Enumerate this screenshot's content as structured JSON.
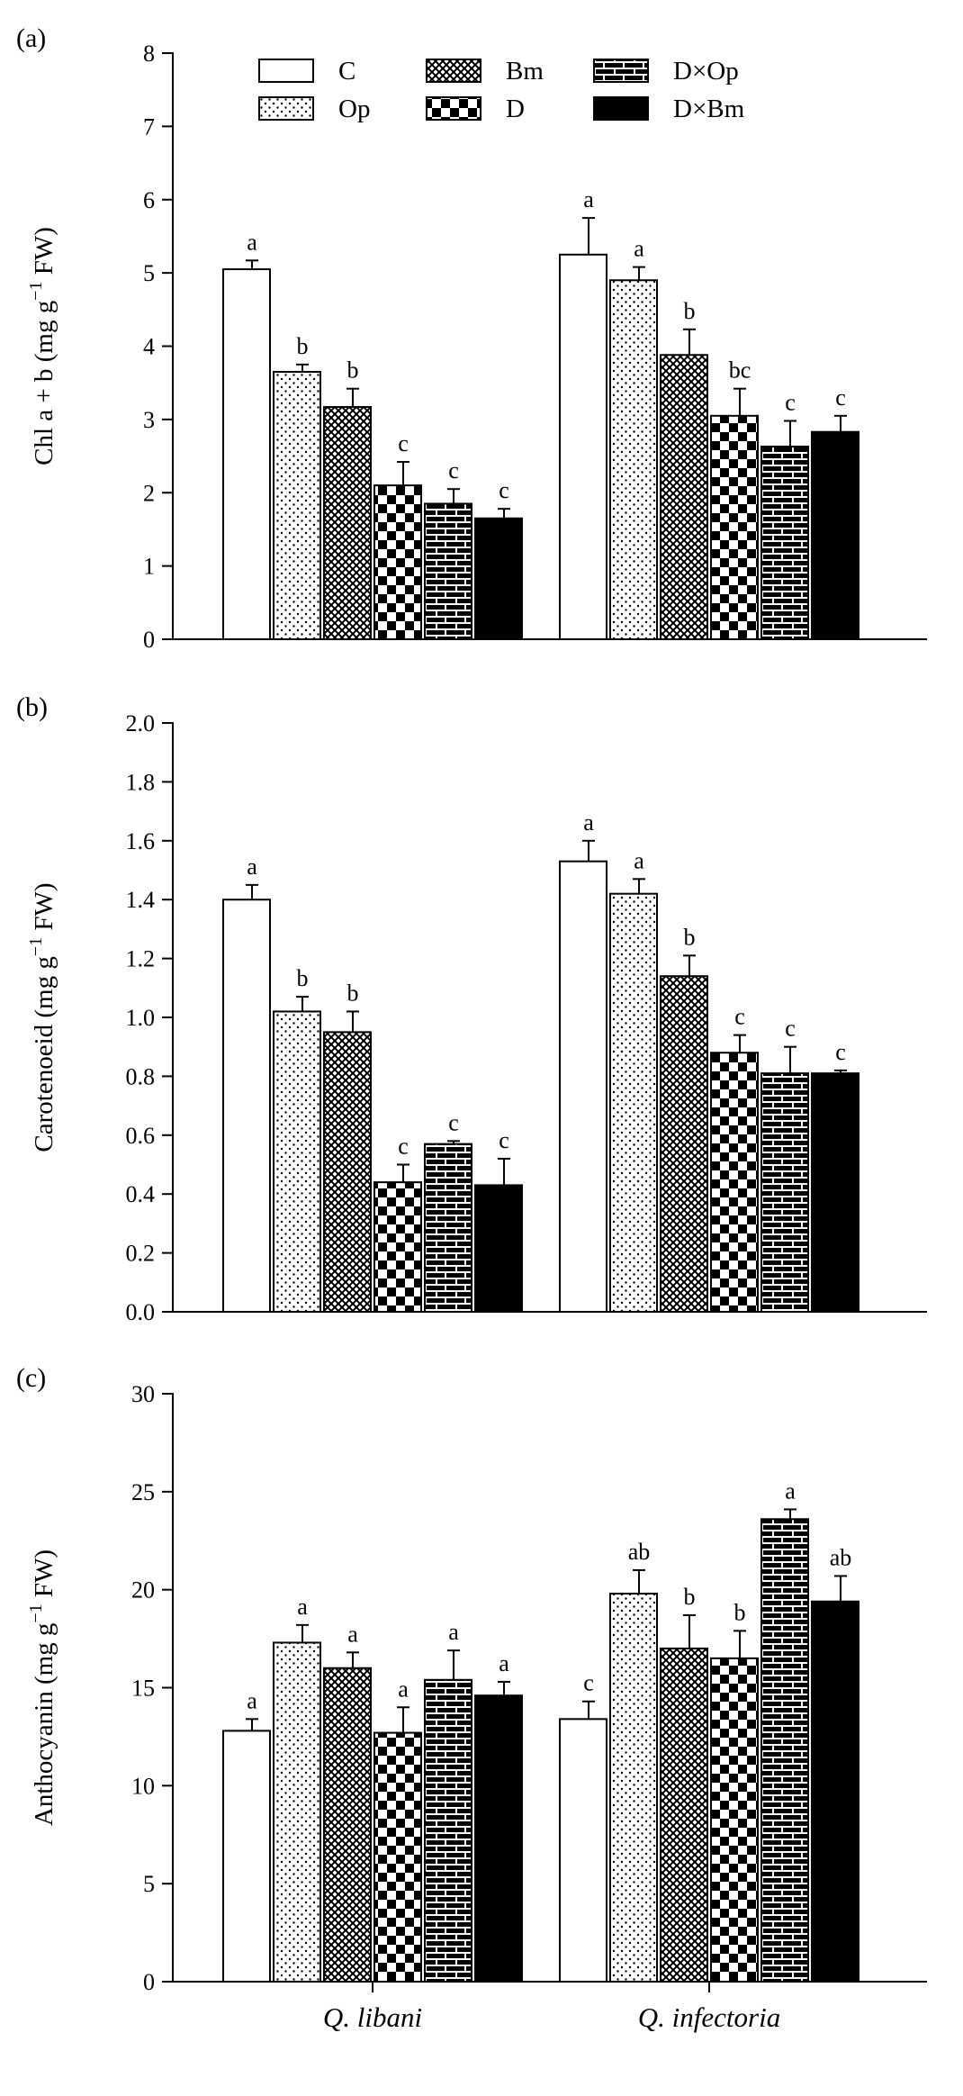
{
  "legend": [
    {
      "key": "C",
      "label": "C",
      "pattern": "white"
    },
    {
      "key": "Op",
      "label": "Op",
      "pattern": "dots"
    },
    {
      "key": "Bm",
      "label": "Bm",
      "pattern": "crosshatch"
    },
    {
      "key": "D",
      "label": "D",
      "pattern": "checker"
    },
    {
      "key": "DxOp",
      "label": "D×Op",
      "pattern": "brick"
    },
    {
      "key": "DxBm",
      "label": "D×Bm",
      "pattern": "solid"
    }
  ],
  "categories": [
    "Q. libani",
    "Q. infectoria"
  ],
  "chart_data": [
    {
      "type": "bar",
      "panel": "(a)",
      "title": "",
      "xlabel": "",
      "ylabel_main": "Chl a + b (mg g",
      "ylabel_sup": "−1",
      "ylabel_tail": " FW)",
      "ylim": [
        0,
        8
      ],
      "yticks": [
        0,
        1,
        2,
        3,
        4,
        5,
        6,
        7,
        8
      ],
      "categories": [
        "Q. libani",
        "Q. infectoria"
      ],
      "series": [
        {
          "name": "C",
          "values": [
            5.05,
            5.25
          ],
          "errors": [
            0.12,
            0.5
          ],
          "letters": [
            "a",
            "a"
          ]
        },
        {
          "name": "Op",
          "values": [
            3.65,
            4.9
          ],
          "errors": [
            0.1,
            0.18
          ],
          "letters": [
            "b",
            "a"
          ]
        },
        {
          "name": "Bm",
          "values": [
            3.17,
            3.88
          ],
          "errors": [
            0.25,
            0.35
          ],
          "letters": [
            "b",
            "b"
          ]
        },
        {
          "name": "D",
          "values": [
            2.1,
            3.05
          ],
          "errors": [
            0.32,
            0.37
          ],
          "letters": [
            "c",
            "bc"
          ]
        },
        {
          "name": "D×Op",
          "values": [
            1.85,
            2.63
          ],
          "errors": [
            0.2,
            0.35
          ],
          "letters": [
            "c",
            "c"
          ]
        },
        {
          "name": "D×Bm",
          "values": [
            1.65,
            2.83
          ],
          "errors": [
            0.13,
            0.22
          ],
          "letters": [
            "c",
            "c"
          ]
        }
      ]
    },
    {
      "type": "bar",
      "panel": "(b)",
      "title": "",
      "xlabel": "",
      "ylabel_main": "Carotenoeid (mg g",
      "ylabel_sup": "−1",
      "ylabel_tail": " FW)",
      "ylim": [
        0,
        2
      ],
      "yticks": [
        "0.0",
        "0.2",
        "0.4",
        "0.6",
        "0.8",
        "1.0",
        "1.2",
        "1.4",
        "1.6",
        "1.8",
        "2.0"
      ],
      "categories": [
        "Q. libani",
        "Q. infectoria"
      ],
      "series": [
        {
          "name": "C",
          "values": [
            1.4,
            1.53
          ],
          "errors": [
            0.05,
            0.07
          ],
          "letters": [
            "a",
            "a"
          ]
        },
        {
          "name": "Op",
          "values": [
            1.02,
            1.42
          ],
          "errors": [
            0.05,
            0.05
          ],
          "letters": [
            "b",
            "a"
          ]
        },
        {
          "name": "Bm",
          "values": [
            0.95,
            1.14
          ],
          "errors": [
            0.07,
            0.07
          ],
          "letters": [
            "b",
            "b"
          ]
        },
        {
          "name": "D",
          "values": [
            0.44,
            0.88
          ],
          "errors": [
            0.06,
            0.06
          ],
          "letters": [
            "c",
            "c"
          ]
        },
        {
          "name": "D×Op",
          "values": [
            0.57,
            0.81
          ],
          "errors": [
            0.01,
            0.09
          ],
          "letters": [
            "c",
            "c"
          ]
        },
        {
          "name": "D×Bm",
          "values": [
            0.43,
            0.81
          ],
          "errors": [
            0.09,
            0.01
          ],
          "letters": [
            "c",
            "c"
          ]
        }
      ]
    },
    {
      "type": "bar",
      "panel": "(c)",
      "title": "",
      "xlabel": "",
      "ylabel_main": "Anthocyanin (mg g",
      "ylabel_sup": "−1",
      "ylabel_tail": " FW)",
      "ylim": [
        0,
        30
      ],
      "yticks": [
        0,
        5,
        10,
        15,
        20,
        25,
        30
      ],
      "categories": [
        "Q. libani",
        "Q. infectoria"
      ],
      "series": [
        {
          "name": "C",
          "values": [
            12.8,
            13.4
          ],
          "errors": [
            0.6,
            0.9
          ],
          "letters": [
            "a",
            "c"
          ]
        },
        {
          "name": "Op",
          "values": [
            17.3,
            19.8
          ],
          "errors": [
            0.9,
            1.2
          ],
          "letters": [
            "a",
            "ab"
          ]
        },
        {
          "name": "Bm",
          "values": [
            16.0,
            17.0
          ],
          "errors": [
            0.8,
            1.7
          ],
          "letters": [
            "a",
            "b"
          ]
        },
        {
          "name": "D",
          "values": [
            12.7,
            16.5
          ],
          "errors": [
            1.3,
            1.4
          ],
          "letters": [
            "a",
            "b"
          ]
        },
        {
          "name": "D×Op",
          "values": [
            15.4,
            23.6
          ],
          "errors": [
            1.5,
            0.5
          ],
          "letters": [
            "a",
            "a"
          ]
        },
        {
          "name": "D×Bm",
          "values": [
            14.6,
            19.4
          ],
          "errors": [
            0.7,
            1.3
          ],
          "letters": [
            "a",
            "ab"
          ]
        }
      ]
    }
  ]
}
